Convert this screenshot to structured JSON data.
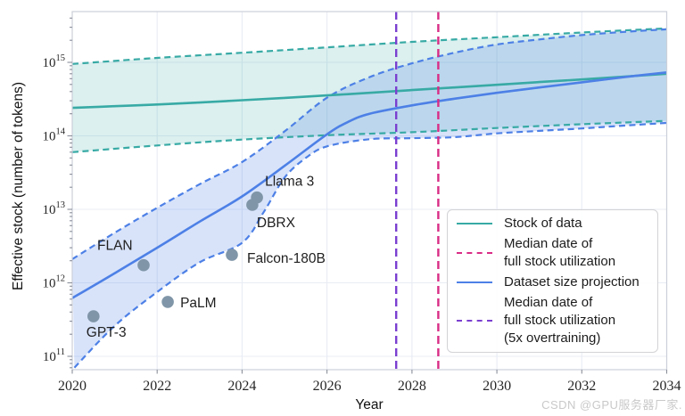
{
  "chart_data": {
    "type": "line",
    "title": "",
    "xlabel": "Year",
    "ylabel": "Effective stock (number of tokens)",
    "xlim": [
      2020,
      2034
    ],
    "ylim_log10": [
      10.83,
      15.69
    ],
    "grid": true,
    "legend_position": "lower right",
    "x_ticks": [
      2020,
      2022,
      2024,
      2026,
      2028,
      2030,
      2032,
      2034
    ],
    "y_tick_exponents": [
      11,
      12,
      13,
      14,
      15
    ],
    "series": [
      {
        "name": "Stock of data (median)",
        "color": "#38aaa5",
        "style": "solid",
        "points": [
          [
            2020,
            240000000000000.0
          ],
          [
            2021,
            253000000000000.0
          ],
          [
            2022,
            267000000000000.0
          ],
          [
            2023,
            284000000000000.0
          ],
          [
            2024,
            305000000000000.0
          ],
          [
            2025,
            328000000000000.0
          ],
          [
            2026,
            355000000000000.0
          ],
          [
            2027,
            385000000000000.0
          ],
          [
            2028,
            420000000000000.0
          ],
          [
            2029,
            455000000000000.0
          ],
          [
            2030,
            495000000000000.0
          ],
          [
            2031,
            540000000000000.0
          ],
          [
            2032,
            585000000000000.0
          ],
          [
            2033,
            640000000000000.0
          ],
          [
            2034,
            700000000000000.0
          ]
        ]
      },
      {
        "name": "Stock of data (upper bound)",
        "color": "#38aaa5",
        "style": "dashed",
        "points": [
          [
            2020,
            950000000000000.0
          ],
          [
            2022,
            1150000000000000.0
          ],
          [
            2024,
            1350000000000000.0
          ],
          [
            2026,
            1600000000000000.0
          ],
          [
            2028,
            1900000000000000.0
          ],
          [
            2030,
            2200000000000000.0
          ],
          [
            2032,
            2550000000000000.0
          ],
          [
            2034,
            2900000000000000.0
          ]
        ]
      },
      {
        "name": "Stock of data (lower bound)",
        "color": "#38aaa5",
        "style": "dashed",
        "points": [
          [
            2020,
            60000000000000.0
          ],
          [
            2022,
            74000000000000.0
          ],
          [
            2024,
            89000000000000.0
          ],
          [
            2026,
            102000000000000.0
          ],
          [
            2028,
            112000000000000.0
          ],
          [
            2030,
            128000000000000.0
          ],
          [
            2032,
            144000000000000.0
          ],
          [
            2034,
            160000000000000.0
          ]
        ]
      },
      {
        "name": "Dataset size projection (median)",
        "color": "#4d80e6",
        "style": "solid",
        "points": [
          [
            2020,
            620000000000.0
          ],
          [
            2021,
            1350000000000.0
          ],
          [
            2022,
            3000000000000.0
          ],
          [
            2023,
            6800000000000.0
          ],
          [
            2024,
            15000000000000.0
          ],
          [
            2025,
            39000000000000.0
          ],
          [
            2026,
            105000000000000.0
          ],
          [
            2026.5,
            155000000000000.0
          ],
          [
            2027,
            200000000000000.0
          ],
          [
            2028,
            260000000000000.0
          ],
          [
            2029,
            320000000000000.0
          ],
          [
            2030,
            385000000000000.0
          ],
          [
            2031,
            455000000000000.0
          ],
          [
            2032,
            535000000000000.0
          ],
          [
            2033,
            630000000000000.0
          ],
          [
            2034,
            730000000000000.0
          ]
        ]
      },
      {
        "name": "Dataset size projection (upper bound)",
        "color": "#4d80e6",
        "style": "dashed",
        "points": [
          [
            2020,
            2100000000000.0
          ],
          [
            2021,
            4800000000000.0
          ],
          [
            2022,
            10500000000000.0
          ],
          [
            2023,
            22000000000000.0
          ],
          [
            2024,
            44000000000000.0
          ],
          [
            2025,
            115000000000000.0
          ],
          [
            2026,
            330000000000000.0
          ],
          [
            2027,
            630000000000000.0
          ],
          [
            2028,
            970000000000000.0
          ],
          [
            2029,
            1350000000000000.0
          ],
          [
            2030,
            1750000000000000.0
          ],
          [
            2031,
            2050000000000000.0
          ],
          [
            2032,
            2350000000000000.0
          ],
          [
            2033,
            2600000000000000.0
          ],
          [
            2034,
            2820000000000000.0
          ]
        ]
      },
      {
        "name": "Dataset size projection (lower bound)",
        "color": "#4d80e6",
        "style": "dashed",
        "points": [
          [
            2020.05,
            70000000000.0
          ],
          [
            2021,
            260000000000.0
          ],
          [
            2022,
            750000000000.0
          ],
          [
            2023,
            1900000000000.0
          ],
          [
            2024,
            3500000000000.0
          ],
          [
            2024.5,
            9000000000000.0
          ],
          [
            2025,
            27000000000000.0
          ],
          [
            2025.5,
            50000000000000.0
          ],
          [
            2026,
            72000000000000.0
          ],
          [
            2027,
            90000000000000.0
          ],
          [
            2028,
            93000000000000.0
          ],
          [
            2029,
            96000000000000.0
          ],
          [
            2030,
            108000000000000.0
          ],
          [
            2031,
            117000000000000.0
          ],
          [
            2032,
            126000000000000.0
          ],
          [
            2033,
            138000000000000.0
          ],
          [
            2034,
            150000000000000.0
          ]
        ]
      }
    ],
    "bands": [
      {
        "name": "stock-of-data-band",
        "upper": 1,
        "lower": 2,
        "fill": "rgba(56,170,164,0.18)"
      },
      {
        "name": "dataset-projection-band",
        "upper": 4,
        "lower": 5,
        "fill": "rgba(77,128,230,0.22)"
      }
    ],
    "scatter": {
      "name": "model-datasets",
      "color": "#8096a8",
      "points": [
        {
          "label": "GPT-3",
          "year": 2020.5,
          "tokens": 350000000000.0,
          "label_dx": -8,
          "label_dy": 23
        },
        {
          "label": "FLAN",
          "year": 2021.68,
          "tokens": 1740000000000.0,
          "label_dx": -52,
          "label_dy": -17
        },
        {
          "label": "PaLM",
          "year": 2022.25,
          "tokens": 550000000000.0,
          "label_dx": 14,
          "label_dy": 6
        },
        {
          "label": "Falcon-180B",
          "year": 2023.76,
          "tokens": 2400000000000.0,
          "label_dx": 17,
          "label_dy": 9
        },
        {
          "label": "DBRX",
          "year": 2024.24,
          "tokens": 11500000000000.0,
          "label_dx": 5,
          "label_dy": 25
        },
        {
          "label": "Llama 3",
          "year": 2024.35,
          "tokens": 14500000000000.0,
          "label_dx": 9,
          "label_dy": -13
        }
      ]
    },
    "vlines": [
      {
        "name": "median-date-full-stock-utilization",
        "year": 2028.62,
        "color": "#d92c86",
        "style": "dashed"
      },
      {
        "name": "median-date-full-stock-utilization-5x-overtraining",
        "year": 2027.63,
        "color": "#7a3fd0",
        "style": "dashed"
      }
    ]
  },
  "legend": {
    "items": [
      {
        "label": "Stock of data",
        "color": "#38aaa5",
        "style": "solid"
      },
      {
        "label": "Median date of\nfull stock utilization",
        "color": "#d92c86",
        "style": "dashed"
      },
      {
        "label": "Dataset size projection",
        "color": "#4d80e6",
        "style": "solid"
      },
      {
        "label": "Median date of\nfull stock utilization\n(5x overtraining)",
        "color": "#7a3fd0",
        "style": "dashed"
      }
    ]
  },
  "axis": {
    "xlabel": "Year",
    "ylabel": "Effective stock (number of tokens)"
  },
  "colors": {
    "stock": "#38aaa5",
    "projection": "#4d80e6",
    "utilization_line": "#d92c86",
    "overtraining_line": "#7a3fd0",
    "scatter_dot": "#8096a8",
    "gridline": "#e8ecf4",
    "spine": "#ccd0d9"
  },
  "watermark": "CSDN @GPU服务器厂家."
}
